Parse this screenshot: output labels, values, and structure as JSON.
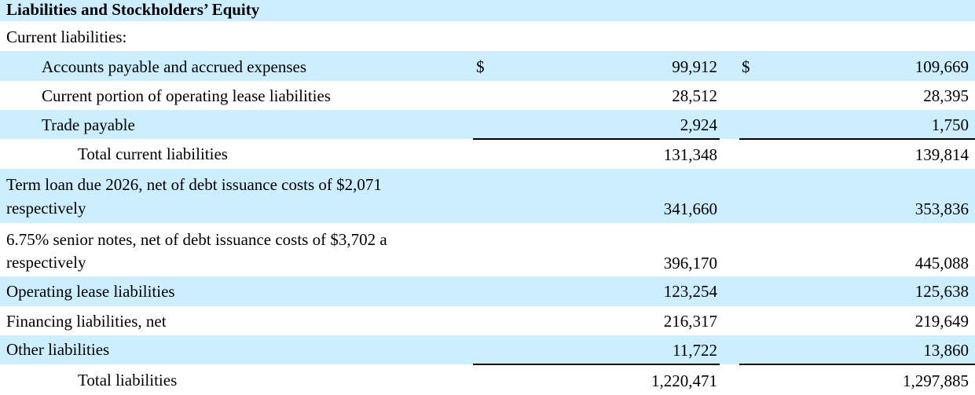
{
  "header": {
    "title": "Liabilities and Stockholders’ Equity"
  },
  "current_section": {
    "label": "Current liabilities:"
  },
  "currency_symbol": "$",
  "rows": {
    "accounts_payable": {
      "label": "Accounts payable and accrued expenses",
      "v1": "99,912",
      "v2": "109,669"
    },
    "current_lease": {
      "label": "Current portion of operating lease liabilities",
      "v1": "28,512",
      "v2": "28,395"
    },
    "trade_payable": {
      "label": "Trade payable",
      "v1": "2,924",
      "v2": "1,750"
    },
    "total_current": {
      "label": "Total current liabilities",
      "v1": "131,348",
      "v2": "139,814"
    },
    "term_loan": {
      "label_line1": "Term loan due 2026, net of debt issuance costs of $2,071",
      "label_line2": "respectively",
      "v1": "341,660",
      "v2": "353,836"
    },
    "senior_notes": {
      "label_line1": "6.75% senior notes, net of debt issuance costs of $3,702 a",
      "label_line2": "respectively",
      "v1": "396,170",
      "v2": "445,088"
    },
    "operating_lease": {
      "label": "Operating lease liabilities",
      "v1": "123,254",
      "v2": "125,638"
    },
    "financing": {
      "label": "Financing liabilities, net",
      "v1": "216,317",
      "v2": "219,649"
    },
    "other": {
      "label": "Other liabilities",
      "v1": "11,722",
      "v2": "13,860"
    },
    "total": {
      "label": "Total liabilities",
      "v1": "1,220,471",
      "v2": "1,297,885"
    }
  },
  "colors": {
    "row_shade": "#cceeff",
    "text": "#000000",
    "rule": "#000000"
  }
}
